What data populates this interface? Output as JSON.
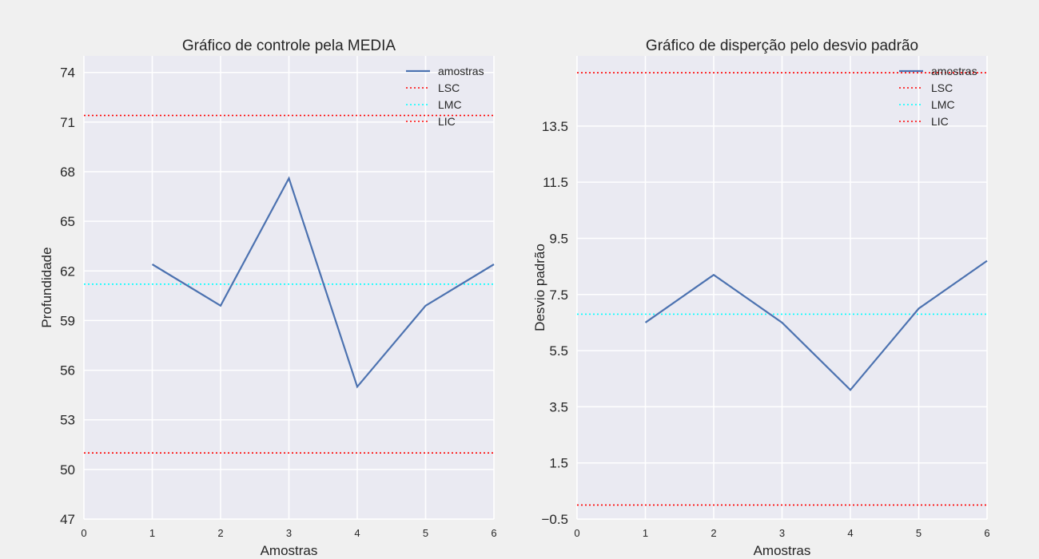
{
  "chart_data": [
    {
      "type": "line",
      "title": "Gráfico de controle pela MEDIA",
      "xlabel": "Amostras",
      "ylabel": "Profundidade",
      "xlim": [
        0,
        6
      ],
      "ylim": [
        47,
        75
      ],
      "xticks": [
        "0",
        "1",
        "2",
        "3",
        "4",
        "5",
        "6"
      ],
      "yticks": [
        {
          "value": 47,
          "label": "47"
        },
        {
          "value": 50,
          "label": "50"
        },
        {
          "value": 53,
          "label": "53"
        },
        {
          "value": 56,
          "label": "56"
        },
        {
          "value": 59,
          "label": "59"
        },
        {
          "value": 62,
          "label": "62"
        },
        {
          "value": 65,
          "label": "65"
        },
        {
          "value": 68,
          "label": "68"
        },
        {
          "value": 71,
          "label": "71"
        },
        {
          "value": 74,
          "label": "74"
        }
      ],
      "series": [
        {
          "name": "amostras",
          "x": [
            1,
            2,
            3,
            4,
            5,
            6
          ],
          "values": [
            62.4,
            59.9,
            67.6,
            55.0,
            59.9,
            62.4
          ],
          "color": "#4c72b0",
          "style": "solid"
        }
      ],
      "hlines": [
        {
          "name": "LSC",
          "value": 71.4,
          "color": "#ff0000"
        },
        {
          "name": "LMC",
          "value": 61.2,
          "color": "#00ffff"
        },
        {
          "name": "LIC",
          "value": 51.0,
          "color": "#ff0000"
        }
      ],
      "legend": [
        "amostras",
        "LSC",
        "LMC",
        "LIC"
      ],
      "legend_position": "top-right",
      "grid": true
    },
    {
      "type": "line",
      "title": "Gráfico de disperção pelo desvio padrão",
      "xlabel": "Amostras",
      "ylabel": "Desvio padrão",
      "xlim": [
        0,
        6
      ],
      "ylim": [
        -0.5,
        16.0
      ],
      "xticks": [
        "0",
        "1",
        "2",
        "3",
        "4",
        "5",
        "6"
      ],
      "yticks": [
        {
          "value": -0.5,
          "label": "−0.5"
        },
        {
          "value": 1.5,
          "label": "1.5"
        },
        {
          "value": 3.5,
          "label": "3.5"
        },
        {
          "value": 5.5,
          "label": "5.5"
        },
        {
          "value": 7.5,
          "label": "7.5"
        },
        {
          "value": 9.5,
          "label": "9.5"
        },
        {
          "value": 11.5,
          "label": "11.5"
        },
        {
          "value": 13.5,
          "label": "13.5"
        }
      ],
      "series": [
        {
          "name": "amostras",
          "x": [
            1,
            2,
            3,
            4,
            5,
            6
          ],
          "values": [
            6.5,
            8.2,
            6.5,
            4.1,
            7.0,
            8.7
          ],
          "color": "#4c72b0",
          "style": "solid"
        }
      ],
      "hlines": [
        {
          "name": "LSC",
          "value": 15.4,
          "color": "#ff0000"
        },
        {
          "name": "LMC",
          "value": 6.8,
          "color": "#00ffff"
        },
        {
          "name": "LIC",
          "value": 0.0,
          "color": "#ff0000"
        }
      ],
      "legend": [
        "amostras",
        "LSC",
        "LMC",
        "LIC"
      ],
      "legend_position": "top-right",
      "grid": true
    }
  ]
}
